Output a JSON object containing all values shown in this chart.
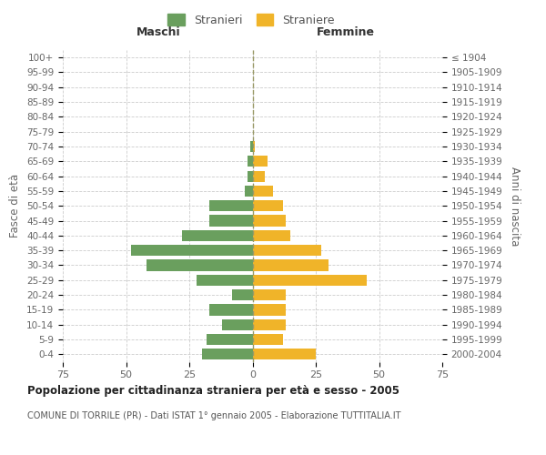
{
  "age_groups": [
    "0-4",
    "5-9",
    "10-14",
    "15-19",
    "20-24",
    "25-29",
    "30-34",
    "35-39",
    "40-44",
    "45-49",
    "50-54",
    "55-59",
    "60-64",
    "65-69",
    "70-74",
    "75-79",
    "80-84",
    "85-89",
    "90-94",
    "95-99",
    "100+"
  ],
  "birth_years": [
    "2000-2004",
    "1995-1999",
    "1990-1994",
    "1985-1989",
    "1980-1984",
    "1975-1979",
    "1970-1974",
    "1965-1969",
    "1960-1964",
    "1955-1959",
    "1950-1954",
    "1945-1949",
    "1940-1944",
    "1935-1939",
    "1930-1934",
    "1925-1929",
    "1920-1924",
    "1915-1919",
    "1910-1914",
    "1905-1909",
    "≤ 1904"
  ],
  "males": [
    20,
    18,
    12,
    17,
    8,
    22,
    42,
    48,
    28,
    17,
    17,
    3,
    2,
    2,
    1,
    0,
    0,
    0,
    0,
    0,
    0
  ],
  "females": [
    25,
    12,
    13,
    13,
    13,
    45,
    30,
    27,
    15,
    13,
    12,
    8,
    5,
    6,
    1,
    0,
    0,
    0,
    0,
    0,
    0
  ],
  "male_color": "#6a9f5e",
  "female_color": "#f0b429",
  "title": "Popolazione per cittadinanza straniera per età e sesso - 2005",
  "subtitle": "COMUNE DI TORRILE (PR) - Dati ISTAT 1° gennaio 2005 - Elaborazione TUTTITALIA.IT",
  "xlabel_left": "Maschi",
  "xlabel_right": "Femmine",
  "ylabel_left": "Fasce di età",
  "ylabel_right": "Anni di nascita",
  "legend_male": "Stranieri",
  "legend_female": "Straniere",
  "xlim": 75,
  "background_color": "#ffffff",
  "grid_color": "#cccccc",
  "bar_height": 0.75
}
